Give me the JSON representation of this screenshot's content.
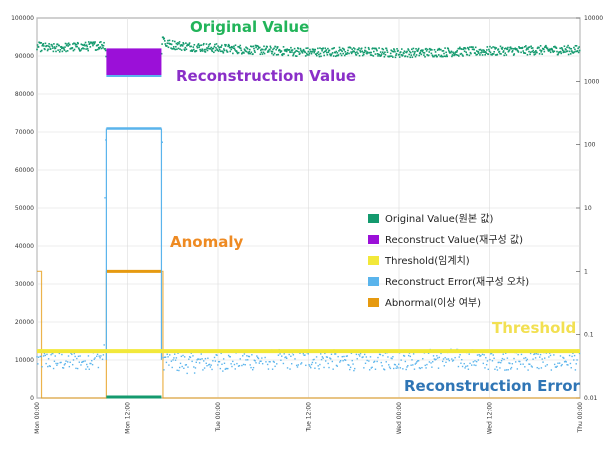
{
  "chart_data": {
    "type": "line",
    "title": "",
    "xlabel": "",
    "ylabel": "",
    "left_axis": {
      "ylim": [
        0,
        100000
      ],
      "ticks": [
        0,
        10000,
        20000,
        30000,
        40000,
        50000,
        60000,
        70000,
        80000,
        90000,
        100000
      ],
      "tick_labels": [
        "0",
        "10000",
        "20000",
        "30000",
        "40000",
        "50000",
        "60000",
        "70000",
        "80000",
        "90000",
        "100000"
      ]
    },
    "right_axis": {
      "scale": "log",
      "ylim": [
        0.01,
        10000
      ],
      "ticks": [
        0.01,
        0.1,
        1,
        10,
        100,
        1000,
        10000
      ],
      "tick_labels": [
        "0.01",
        "0.1",
        "1",
        "10",
        "100",
        "1000",
        "10000"
      ]
    },
    "x_axis": {
      "range_hours": [
        0,
        72
      ],
      "ticks": [
        0,
        12,
        24,
        36,
        48,
        60,
        72
      ],
      "tick_labels": [
        "Mon 00:00",
        "Mon 12:00",
        "Tue 00:00",
        "Tue 12:00",
        "Wed 00:00",
        "Wed 12:00",
        "Thu 00:00"
      ]
    },
    "legend": {
      "placement": "center-right",
      "entries": [
        {
          "label": "Original Value(원본 값)",
          "color": "#149a6e"
        },
        {
          "label": "Reconstruct Value(재구성 값)",
          "color": "#9b10d8"
        },
        {
          "label": "Threshold(임계치)",
          "color": "#f2e83a"
        },
        {
          "label": "Reconstruct Error(재구성 오차)",
          "color": "#5ab4ec"
        },
        {
          "label": "Abnormal(이상 여부)",
          "color": "#e69a10"
        }
      ]
    },
    "series": [
      {
        "name": "Original Value",
        "axis": "left",
        "color": "#149a6e",
        "x": [
          0,
          2,
          4,
          6,
          8,
          9,
          9.2,
          16.5,
          16.7,
          17,
          20,
          24,
          30,
          36,
          42,
          48,
          54,
          60,
          66,
          72
        ],
        "y": [
          92500,
          92000,
          92300,
          92400,
          92800,
          93000,
          90000,
          90000,
          96000,
          93200,
          92500,
          92000,
          91500,
          91000,
          91200,
          90800,
          91000,
          91300,
          91500,
          91600
        ]
      },
      {
        "name": "Reconstruct Value",
        "axis": "left",
        "color": "#9b10d8",
        "x": [
          9.2,
          16.5
        ],
        "y_range": [
          85000,
          92000
        ]
      },
      {
        "name": "Threshold",
        "axis": "right",
        "color": "#f2e83a",
        "x": [
          0,
          72
        ],
        "y": [
          0.055,
          0.055
        ]
      },
      {
        "name": "Reconstruct Error",
        "axis": "right",
        "color": "#5ab4ec",
        "x": [
          0,
          4,
          8,
          9,
          9.2,
          16.5,
          16.7,
          20,
          24,
          30,
          36,
          42,
          48,
          54,
          60,
          66,
          72
        ],
        "y": [
          0.04,
          0.038,
          0.042,
          0.05,
          180,
          180,
          0.04,
          0.035,
          0.038,
          0.04,
          0.041,
          0.039,
          0.04,
          0.042,
          0.04,
          0.039,
          0.04
        ]
      },
      {
        "name": "Abnormal",
        "axis": "right",
        "color": "#e69a10",
        "x": [
          0,
          0.5,
          0.6,
          9,
          9.2,
          16.5,
          16.7,
          72
        ],
        "y": [
          1,
          1,
          0.01,
          0.01,
          1,
          1,
          0.01,
          0.01
        ]
      }
    ],
    "annotations": [
      {
        "text": "Original Value",
        "color": "#22b45a"
      },
      {
        "text": "Reconstruction Value",
        "color": "#8a2fc8"
      },
      {
        "text": "Anomaly",
        "color": "#ee8a22"
      },
      {
        "text": "Threshold",
        "color": "#f2e052"
      },
      {
        "text": "Reconstruction Error",
        "color": "#2f75b5"
      }
    ]
  }
}
